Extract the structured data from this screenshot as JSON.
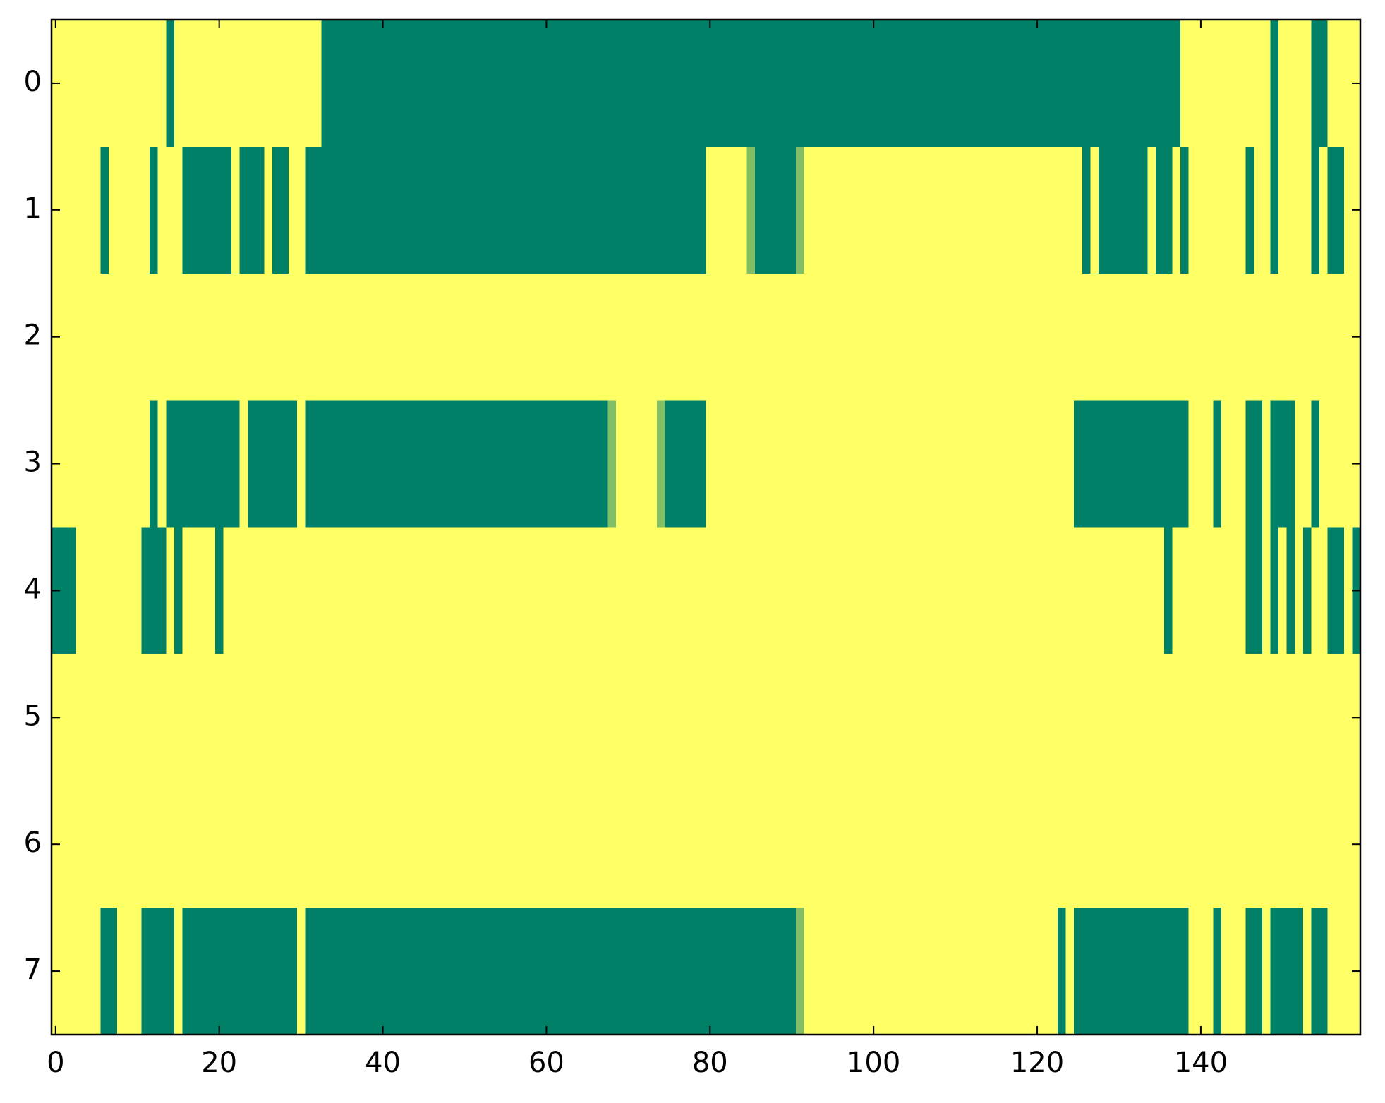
{
  "chart_data": {
    "type": "heatmap",
    "colormap": "summer",
    "clim": [
      0,
      1
    ],
    "xlim": [
      -0.5,
      159.5
    ],
    "ylim": [
      7.5,
      -0.5
    ],
    "xticks": [
      0,
      20,
      40,
      60,
      80,
      100,
      120,
      140
    ],
    "yticks": [
      0,
      1,
      2,
      3,
      4,
      5,
      6,
      7
    ],
    "z": [
      [
        1,
        1,
        1,
        1,
        1,
        1,
        1,
        1,
        1,
        1,
        1,
        1,
        1,
        1,
        0,
        1,
        1,
        1,
        1,
        1,
        1,
        1,
        1,
        1,
        1,
        1,
        1,
        1,
        1,
        1,
        1,
        1,
        1,
        0,
        0,
        0,
        0,
        0,
        0,
        0,
        0,
        0,
        0,
        0,
        0,
        0,
        0,
        0,
        0,
        0,
        0,
        0,
        0,
        0,
        0,
        0,
        0,
        0,
        0,
        0,
        0,
        0,
        0,
        0,
        0,
        0,
        0,
        0,
        0,
        0,
        0,
        0,
        0,
        0,
        0,
        0,
        0,
        0,
        0,
        0,
        0,
        0,
        0,
        0,
        0,
        0,
        0,
        0,
        0,
        0,
        0,
        0,
        0,
        0,
        0,
        0,
        0,
        0,
        0,
        0,
        0,
        0,
        0,
        0,
        0,
        0,
        0,
        0,
        0,
        0,
        0,
        0,
        0,
        0,
        0,
        0,
        0,
        0,
        0,
        0,
        0,
        0,
        0,
        0,
        0,
        0,
        0,
        0,
        0,
        0,
        0,
        0,
        0,
        0,
        0,
        0,
        0,
        0,
        1,
        1,
        1,
        1,
        1,
        1,
        1,
        1,
        1,
        1,
        1,
        0,
        1,
        1,
        1,
        1,
        0,
        0,
        1,
        1,
        1,
        1
      ],
      [
        1,
        1,
        1,
        1,
        1,
        1,
        0,
        1,
        1,
        1,
        1,
        1,
        0,
        1,
        1,
        1,
        0,
        0,
        0,
        0,
        0,
        0,
        1,
        0,
        0,
        0,
        1,
        0,
        0,
        1,
        1,
        0,
        0,
        0,
        0,
        0,
        0,
        0,
        0,
        0,
        0,
        0,
        0,
        0,
        0,
        0,
        0,
        0,
        0,
        0,
        0,
        0,
        0,
        0,
        0,
        0,
        0,
        0,
        0,
        0,
        0,
        0,
        0,
        0,
        0,
        0,
        0,
        0,
        0,
        0,
        0,
        0,
        0,
        0,
        0,
        0,
        0,
        0,
        0,
        0,
        1,
        1,
        1,
        1,
        1,
        0.5,
        0,
        0,
        0,
        0,
        0,
        0.5,
        1,
        1,
        1,
        1,
        1,
        1,
        1,
        1,
        1,
        1,
        1,
        1,
        1,
        1,
        1,
        1,
        1,
        1,
        1,
        1,
        1,
        1,
        1,
        1,
        1,
        1,
        1,
        1,
        1,
        1,
        1,
        1,
        1,
        1,
        0,
        1,
        0,
        0,
        0,
        0,
        0,
        0,
        1,
        0,
        0,
        1,
        0,
        1,
        1,
        1,
        1,
        1,
        1,
        1,
        0,
        1,
        1,
        0,
        1,
        1,
        1,
        1,
        0,
        1,
        0,
        0,
        1,
        1
      ],
      [
        1,
        1,
        1,
        1,
        1,
        1,
        1,
        1,
        1,
        1,
        1,
        1,
        1,
        1,
        1,
        1,
        1,
        1,
        1,
        1,
        1,
        1,
        1,
        1,
        1,
        1,
        1,
        1,
        1,
        1,
        1,
        1,
        1,
        1,
        1,
        1,
        1,
        1,
        1,
        1,
        1,
        1,
        1,
        1,
        1,
        1,
        1,
        1,
        1,
        1,
        1,
        1,
        1,
        1,
        1,
        1,
        1,
        1,
        1,
        1,
        1,
        1,
        1,
        1,
        1,
        1,
        1,
        1,
        1,
        1,
        1,
        1,
        1,
        1,
        1,
        1,
        1,
        1,
        1,
        1,
        1,
        1,
        1,
        1,
        1,
        1,
        1,
        1,
        1,
        1,
        1,
        1,
        1,
        1,
        1,
        1,
        1,
        1,
        1,
        1,
        1,
        1,
        1,
        1,
        1,
        1,
        1,
        1,
        1,
        1,
        1,
        1,
        1,
        1,
        1,
        1,
        1,
        1,
        1,
        1,
        1,
        1,
        1,
        1,
        1,
        1,
        1,
        1,
        1,
        1,
        1,
        1,
        1,
        1,
        1,
        1,
        1,
        1,
        1,
        1,
        1,
        1,
        1,
        1,
        1,
        1,
        1,
        1,
        1,
        1,
        1,
        1,
        1,
        1,
        1,
        1,
        1,
        1,
        1,
        1
      ],
      [
        1,
        1,
        1,
        1,
        1,
        1,
        1,
        1,
        1,
        1,
        1,
        1,
        0,
        1,
        0,
        0,
        0,
        0,
        0,
        0,
        0,
        0,
        0,
        1,
        0,
        0,
        0,
        0,
        0,
        0,
        1,
        0,
        0,
        0,
        0,
        0,
        0,
        0,
        0,
        0,
        0,
        0,
        0,
        0,
        0,
        0,
        0,
        0,
        0,
        0,
        0,
        0,
        0,
        0,
        0,
        0,
        0,
        0,
        0,
        0,
        0,
        0,
        0,
        0,
        0,
        0,
        0,
        0,
        0.5,
        1,
        1,
        1,
        1,
        1,
        0.5,
        0,
        0,
        0,
        0,
        0,
        1,
        1,
        1,
        1,
        1,
        1,
        1,
        1,
        1,
        1,
        1,
        1,
        1,
        1,
        1,
        1,
        1,
        1,
        1,
        1,
        1,
        1,
        1,
        1,
        1,
        1,
        1,
        1,
        1,
        1,
        1,
        1,
        1,
        1,
        1,
        1,
        1,
        1,
        1,
        1,
        1,
        1,
        1,
        1,
        1,
        0,
        0,
        0,
        0,
        0,
        0,
        0,
        0,
        0,
        0,
        0,
        0,
        0,
        0,
        1,
        1,
        1,
        0,
        1,
        1,
        1,
        0,
        0,
        1,
        0,
        0,
        0,
        1,
        1,
        0,
        1,
        1,
        1,
        1,
        1
      ],
      [
        0,
        0,
        0,
        1,
        1,
        1,
        1,
        1,
        1,
        1,
        1,
        0,
        0,
        0,
        1,
        0,
        1,
        1,
        1,
        1,
        0,
        1,
        1,
        1,
        1,
        1,
        1,
        1,
        1,
        1,
        1,
        1,
        1,
        1,
        1,
        1,
        1,
        1,
        1,
        1,
        1,
        1,
        1,
        1,
        1,
        1,
        1,
        1,
        1,
        1,
        1,
        1,
        1,
        1,
        1,
        1,
        1,
        1,
        1,
        1,
        1,
        1,
        1,
        1,
        1,
        1,
        1,
        1,
        1,
        1,
        1,
        1,
        1,
        1,
        1,
        1,
        1,
        1,
        1,
        1,
        1,
        1,
        1,
        1,
        1,
        1,
        1,
        1,
        1,
        1,
        1,
        1,
        1,
        1,
        1,
        1,
        1,
        1,
        1,
        1,
        1,
        1,
        1,
        1,
        1,
        1,
        1,
        1,
        1,
        1,
        1,
        1,
        1,
        1,
        1,
        1,
        1,
        1,
        1,
        1,
        1,
        1,
        1,
        1,
        1,
        1,
        1,
        1,
        1,
        1,
        1,
        1,
        1,
        1,
        1,
        1,
        0,
        1,
        1,
        1,
        1,
        1,
        1,
        1,
        1,
        1,
        0,
        0,
        1,
        0,
        1,
        0,
        1,
        0,
        1,
        1,
        0,
        0,
        1,
        0
      ],
      [
        1,
        1,
        1,
        1,
        1,
        1,
        1,
        1,
        1,
        1,
        1,
        1,
        1,
        1,
        1,
        1,
        1,
        1,
        1,
        1,
        1,
        1,
        1,
        1,
        1,
        1,
        1,
        1,
        1,
        1,
        1,
        1,
        1,
        1,
        1,
        1,
        1,
        1,
        1,
        1,
        1,
        1,
        1,
        1,
        1,
        1,
        1,
        1,
        1,
        1,
        1,
        1,
        1,
        1,
        1,
        1,
        1,
        1,
        1,
        1,
        1,
        1,
        1,
        1,
        1,
        1,
        1,
        1,
        1,
        1,
        1,
        1,
        1,
        1,
        1,
        1,
        1,
        1,
        1,
        1,
        1,
        1,
        1,
        1,
        1,
        1,
        1,
        1,
        1,
        1,
        1,
        1,
        1,
        1,
        1,
        1,
        1,
        1,
        1,
        1,
        1,
        1,
        1,
        1,
        1,
        1,
        1,
        1,
        1,
        1,
        1,
        1,
        1,
        1,
        1,
        1,
        1,
        1,
        1,
        1,
        1,
        1,
        1,
        1,
        1,
        1,
        1,
        1,
        1,
        1,
        1,
        1,
        1,
        1,
        1,
        1,
        1,
        1,
        1,
        1,
        1,
        1,
        1,
        1,
        1,
        1,
        1,
        1,
        1,
        1,
        1,
        1,
        1,
        1,
        1,
        1,
        1,
        1,
        1,
        1
      ],
      [
        1,
        1,
        1,
        1,
        1,
        1,
        1,
        1,
        1,
        1,
        1,
        1,
        1,
        1,
        1,
        1,
        1,
        1,
        1,
        1,
        1,
        1,
        1,
        1,
        1,
        1,
        1,
        1,
        1,
        1,
        1,
        1,
        1,
        1,
        1,
        1,
        1,
        1,
        1,
        1,
        1,
        1,
        1,
        1,
        1,
        1,
        1,
        1,
        1,
        1,
        1,
        1,
        1,
        1,
        1,
        1,
        1,
        1,
        1,
        1,
        1,
        1,
        1,
        1,
        1,
        1,
        1,
        1,
        1,
        1,
        1,
        1,
        1,
        1,
        1,
        1,
        1,
        1,
        1,
        1,
        1,
        1,
        1,
        1,
        1,
        1,
        1,
        1,
        1,
        1,
        1,
        1,
        1,
        1,
        1,
        1,
        1,
        1,
        1,
        1,
        1,
        1,
        1,
        1,
        1,
        1,
        1,
        1,
        1,
        1,
        1,
        1,
        1,
        1,
        1,
        1,
        1,
        1,
        1,
        1,
        1,
        1,
        1,
        1,
        1,
        1,
        1,
        1,
        1,
        1,
        1,
        1,
        1,
        1,
        1,
        1,
        1,
        1,
        1,
        1,
        1,
        1,
        1,
        1,
        1,
        1,
        1,
        1,
        1,
        1,
        1,
        1,
        1,
        1,
        1,
        1,
        1,
        1,
        1,
        1
      ],
      [
        1,
        1,
        1,
        1,
        1,
        1,
        0,
        0,
        1,
        1,
        1,
        0,
        0,
        0,
        0,
        1,
        0,
        0,
        0,
        0,
        0,
        0,
        0,
        0,
        0,
        0,
        0,
        0,
        0,
        0,
        1,
        0,
        0,
        0,
        0,
        0,
        0,
        0,
        0,
        0,
        0,
        0,
        0,
        0,
        0,
        0,
        0,
        0,
        0,
        0,
        0,
        0,
        0,
        0,
        0,
        0,
        0,
        0,
        0,
        0,
        0,
        0,
        0,
        0,
        0,
        0,
        0,
        0,
        0,
        0,
        0,
        0,
        0,
        0,
        0,
        0,
        0,
        0,
        0,
        0,
        0,
        0,
        0,
        0,
        0,
        0,
        0,
        0,
        0,
        0,
        0,
        0.5,
        1,
        1,
        1,
        1,
        1,
        1,
        1,
        1,
        1,
        1,
        1,
        1,
        1,
        1,
        1,
        1,
        1,
        1,
        1,
        1,
        1,
        1,
        1,
        1,
        1,
        1,
        1,
        1,
        1,
        1,
        1,
        0,
        1,
        0,
        0,
        0,
        0,
        0,
        0,
        0,
        0,
        0,
        0,
        0,
        0,
        0,
        0,
        1,
        1,
        1,
        0,
        1,
        1,
        1,
        0,
        0,
        1,
        0,
        0,
        0,
        0,
        1,
        0,
        0,
        1,
        1,
        1,
        1
      ]
    ]
  }
}
